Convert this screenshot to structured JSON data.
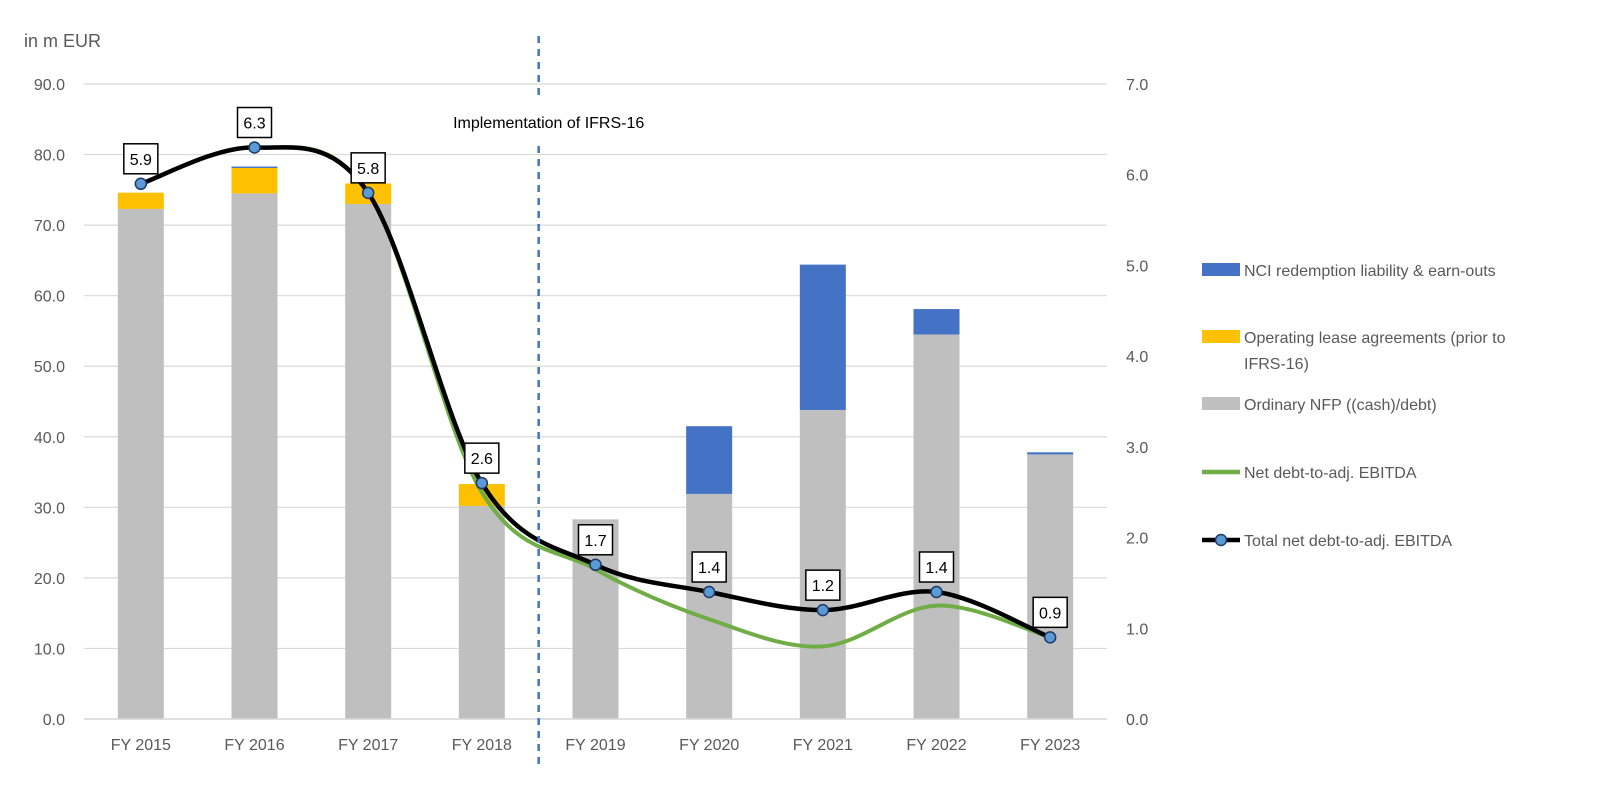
{
  "chart_data": {
    "type": "bar",
    "stacked": true,
    "title": "",
    "unit_label": "in m EUR",
    "categories": [
      "FY 2015",
      "FY 2016",
      "FY 2017",
      "FY 2018",
      "FY 2019",
      "FY 2020",
      "FY 2021",
      "FY 2022",
      "FY 2023"
    ],
    "y_left": {
      "min": 0,
      "max": 90,
      "step": 10,
      "tick_labels": [
        "0.0",
        "10.0",
        "20.0",
        "30.0",
        "40.0",
        "50.0",
        "60.0",
        "70.0",
        "80.0",
        "90.0"
      ]
    },
    "y_right": {
      "min": 0,
      "max": 7,
      "step": 1,
      "tick_labels": [
        "0.0",
        "1.0",
        "2.0",
        "3.0",
        "4.0",
        "5.0",
        "6.0",
        "7.0"
      ]
    },
    "grid": true,
    "series": [
      {
        "name": "Ordinary NFP ((cash)/debt)",
        "kind": "bar",
        "axis": "left",
        "color": "#BFBFBF",
        "values": [
          72.3,
          74.5,
          73.0,
          30.2,
          28.3,
          31.9,
          43.8,
          54.5,
          37.5
        ]
      },
      {
        "name": "Operating lease agreements (prior to IFRS-16)",
        "kind": "bar",
        "axis": "left",
        "color": "#FFC000",
        "values": [
          2.3,
          3.6,
          2.9,
          3.1,
          0,
          0,
          0,
          0,
          0
        ]
      },
      {
        "name": "NCI redemption liability & earn-outs",
        "kind": "bar",
        "axis": "left",
        "color": "#4472C4",
        "values": [
          0,
          0.2,
          0,
          0,
          0,
          9.6,
          20.6,
          3.6,
          0.3
        ]
      },
      {
        "name": "Net debt-to-adj. EBITDA",
        "kind": "line",
        "axis": "right",
        "color": "#70AD47",
        "values": [
          5.9,
          6.3,
          5.8,
          2.5,
          1.65,
          1.1,
          0.8,
          1.25,
          0.9
        ]
      },
      {
        "name": "Total net debt-to-adj. EBITDA",
        "kind": "line",
        "axis": "right",
        "color": "#000000",
        "marker_color": "#5B9BD5",
        "values": [
          5.9,
          6.3,
          5.8,
          2.6,
          1.7,
          1.4,
          1.2,
          1.4,
          0.9
        ],
        "data_labels": [
          "5.9",
          "6.3",
          "5.8",
          "2.6",
          "1.7",
          "1.4",
          "1.2",
          "1.4",
          "0.9"
        ]
      }
    ],
    "annotation": {
      "text": "Implementation of IFRS-16",
      "between": [
        "FY 2018",
        "FY 2019"
      ],
      "line_color": "#4472C4"
    },
    "legend": {
      "position": "right",
      "order": [
        2,
        1,
        0,
        3,
        4
      ]
    }
  }
}
